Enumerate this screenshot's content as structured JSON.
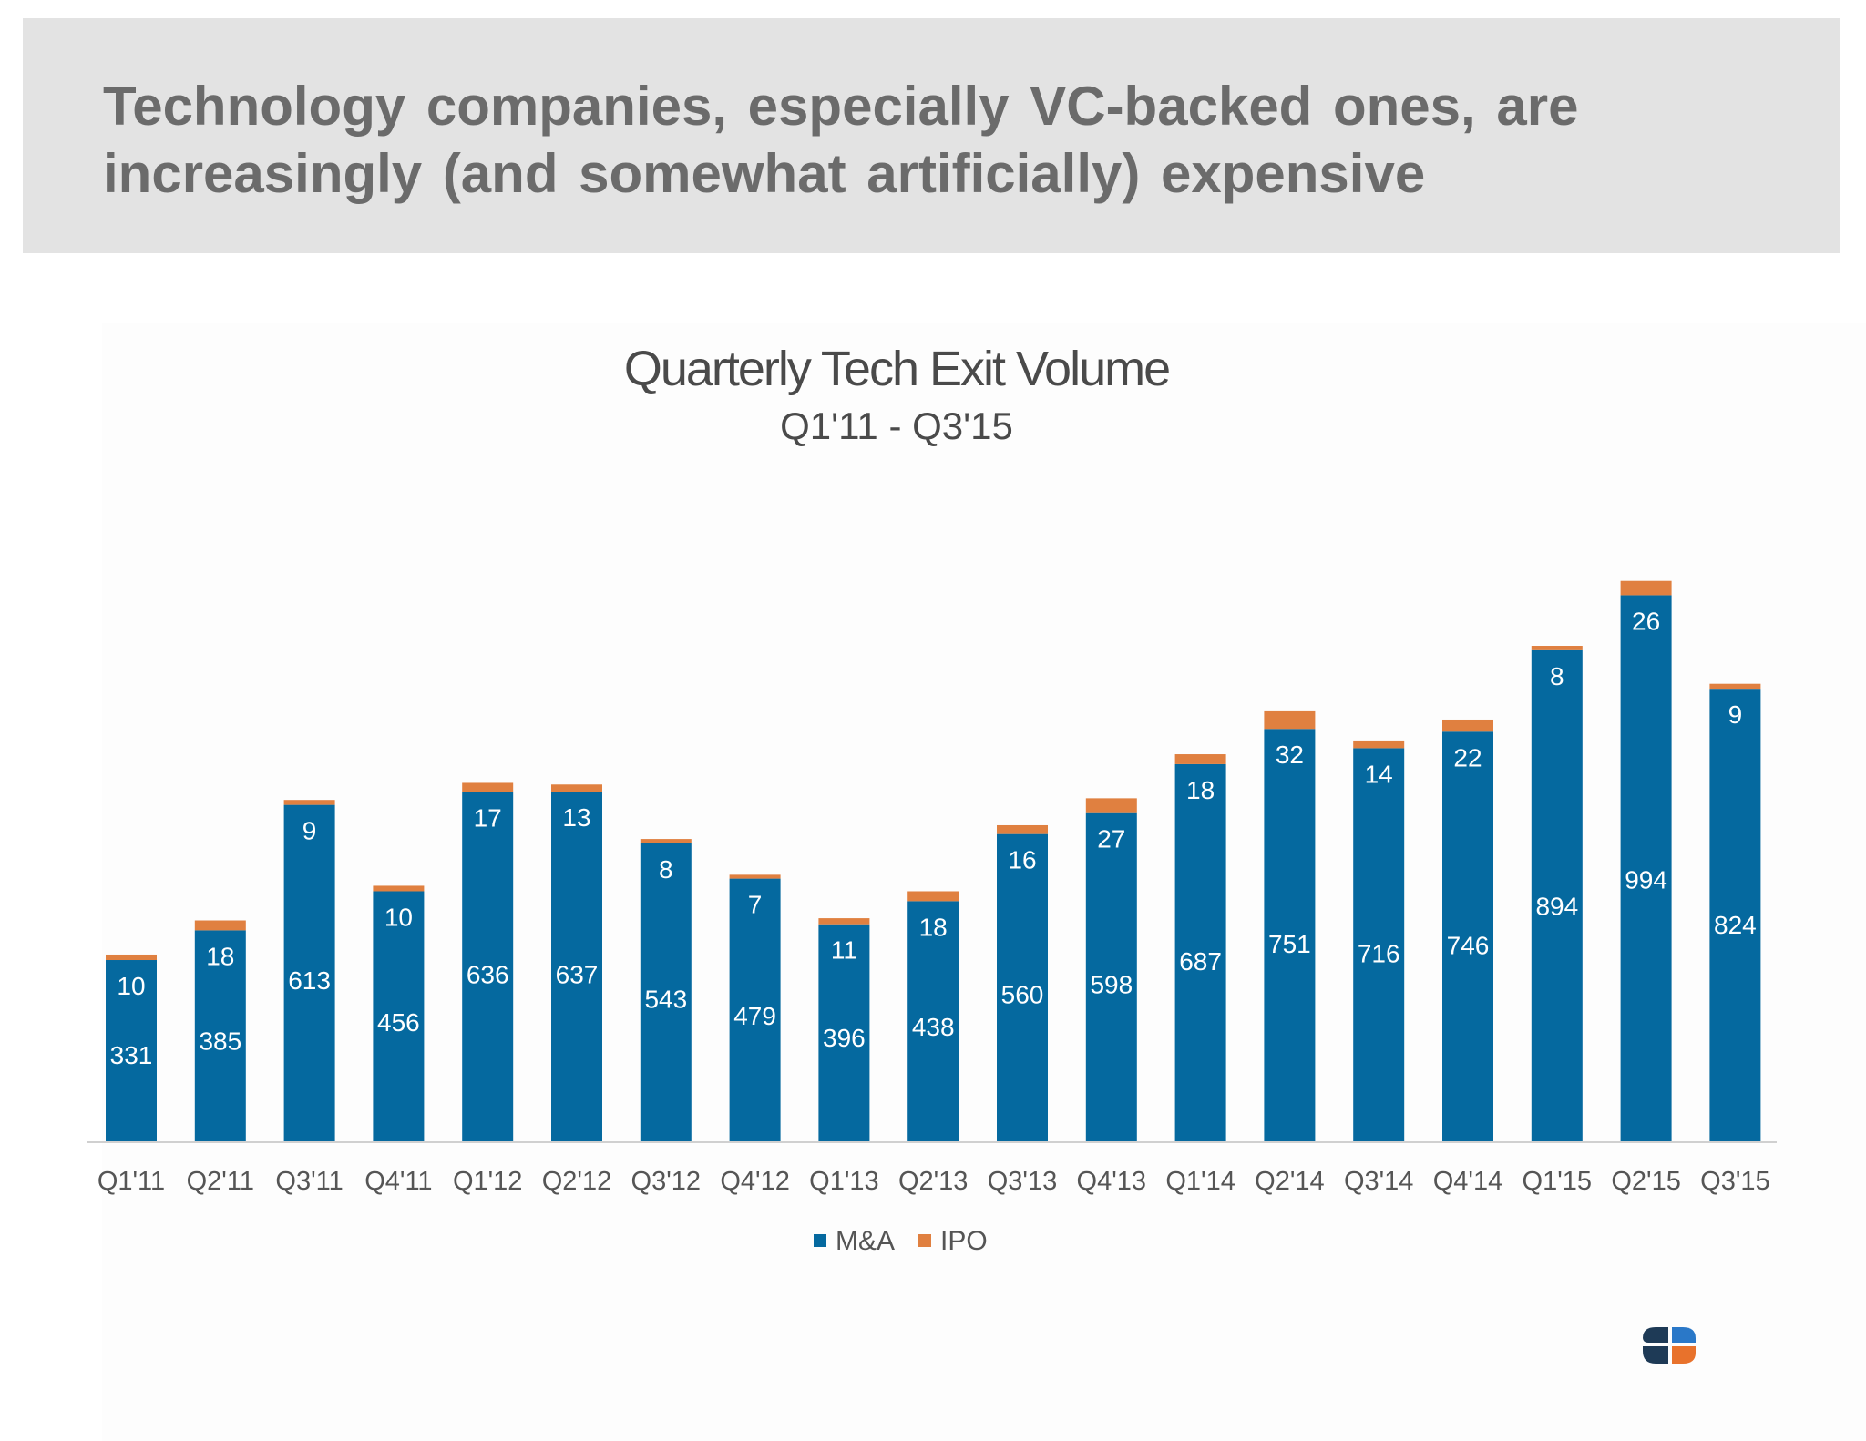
{
  "slide": {
    "title": "Technology companies, especially VC-backed ones, are increasingly (and somewhat artificially) expensive"
  },
  "colors": {
    "header_band": "#e3e3e3",
    "ma": "#05699f",
    "ipo": "#e08040",
    "axis": "#d0d0d0",
    "label_text": "#ffffff",
    "tick_text": "#555555"
  },
  "chart_data": {
    "type": "bar",
    "stacked": true,
    "title": "Quarterly Tech Exit Volume",
    "subtitle": "Q1'11 - Q3'15",
    "categories": [
      "Q1'11",
      "Q2'11",
      "Q3'11",
      "Q4'11",
      "Q1'12",
      "Q2'12",
      "Q3'12",
      "Q4'12",
      "Q1'13",
      "Q2'13",
      "Q3'13",
      "Q4'13",
      "Q1'14",
      "Q2'14",
      "Q3'14",
      "Q4'14",
      "Q1'15",
      "Q2'15",
      "Q3'15"
    ],
    "series": [
      {
        "name": "M&A",
        "values": [
          331,
          385,
          613,
          456,
          636,
          637,
          543,
          479,
          396,
          438,
          560,
          598,
          687,
          751,
          716,
          746,
          894,
          994,
          824
        ]
      },
      {
        "name": "IPO",
        "values": [
          10,
          18,
          9,
          10,
          17,
          13,
          8,
          7,
          11,
          18,
          16,
          27,
          18,
          32,
          14,
          22,
          8,
          26,
          9
        ]
      }
    ],
    "legend_position": "bottom",
    "grid": false,
    "ylim": [
      0,
      1020
    ]
  }
}
